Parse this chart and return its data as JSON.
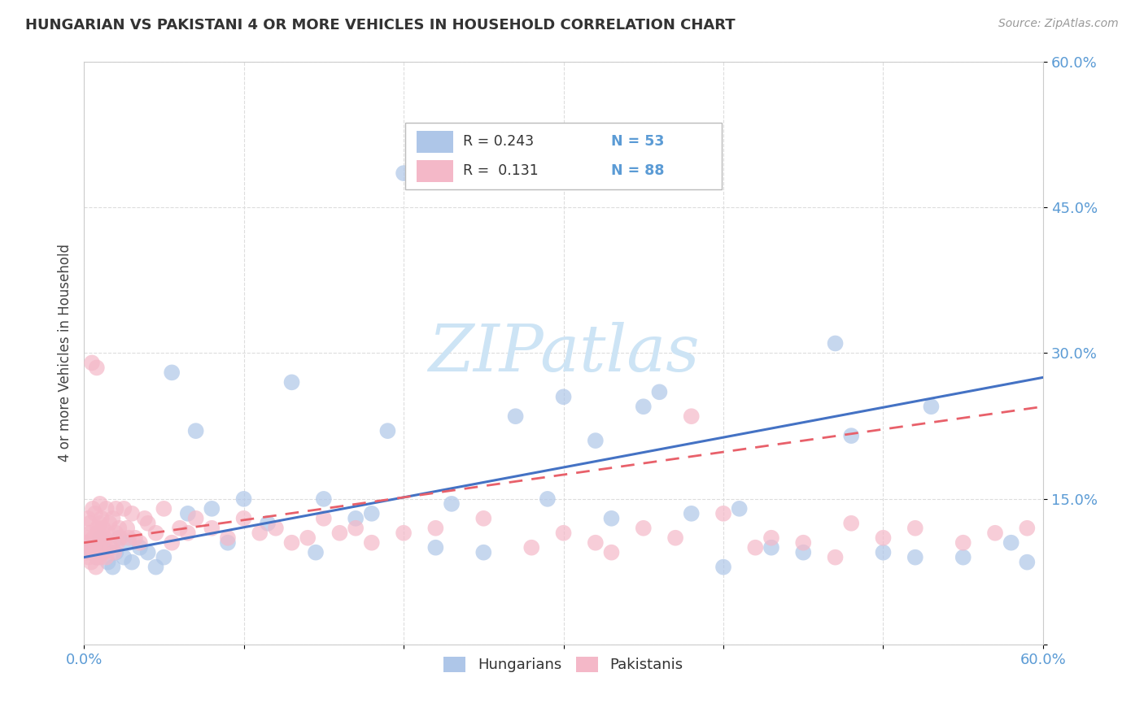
{
  "title": "HUNGARIAN VS PAKISTANI 4 OR MORE VEHICLES IN HOUSEHOLD CORRELATION CHART",
  "source": "Source: ZipAtlas.com",
  "ylabel": "4 or more Vehicles in Household",
  "hungarian_color": "#aec6e8",
  "pakistani_color": "#f4b8c8",
  "hungarian_line_color": "#4472c4",
  "pakistani_line_color": "#e8606a",
  "watermark_color": "#cde4f5",
  "hun_x": [
    0.3,
    0.5,
    0.8,
    1.0,
    1.2,
    1.5,
    1.8,
    2.0,
    2.2,
    2.5,
    2.8,
    3.0,
    3.5,
    4.0,
    4.5,
    5.0,
    5.5,
    6.5,
    7.0,
    8.0,
    9.0,
    10.0,
    11.5,
    13.0,
    14.5,
    17.0,
    19.0,
    22.0,
    23.0,
    25.0,
    27.0,
    29.0,
    32.0,
    33.0,
    35.0,
    38.0,
    40.0,
    41.0,
    43.0,
    45.0,
    47.0,
    50.0,
    52.0,
    55.0,
    58.0,
    59.0,
    15.0,
    18.0,
    20.0,
    30.0,
    36.0,
    48.0,
    53.0
  ],
  "hun_y": [
    10.0,
    9.5,
    9.0,
    11.0,
    10.0,
    8.5,
    8.0,
    9.5,
    11.0,
    9.0,
    10.5,
    8.5,
    10.0,
    9.5,
    8.0,
    9.0,
    28.0,
    13.5,
    22.0,
    14.0,
    10.5,
    15.0,
    12.5,
    27.0,
    9.5,
    13.0,
    22.0,
    10.0,
    14.5,
    9.5,
    23.5,
    15.0,
    21.0,
    13.0,
    24.5,
    13.5,
    8.0,
    14.0,
    10.0,
    9.5,
    31.0,
    9.5,
    9.0,
    9.0,
    10.5,
    8.5,
    15.0,
    13.5,
    48.5,
    25.5,
    26.0,
    21.5,
    24.5
  ],
  "pak_x": [
    0.1,
    0.15,
    0.2,
    0.25,
    0.3,
    0.35,
    0.4,
    0.45,
    0.5,
    0.5,
    0.55,
    0.6,
    0.65,
    0.7,
    0.7,
    0.75,
    0.8,
    0.8,
    0.85,
    0.9,
    0.9,
    1.0,
    1.0,
    1.0,
    1.1,
    1.1,
    1.2,
    1.2,
    1.3,
    1.3,
    1.4,
    1.4,
    1.5,
    1.6,
    1.7,
    1.8,
    1.9,
    2.0,
    2.0,
    2.1,
    2.2,
    2.3,
    2.5,
    2.7,
    2.8,
    3.0,
    3.2,
    3.5,
    3.8,
    4.0,
    4.5,
    5.0,
    5.5,
    6.0,
    6.5,
    7.0,
    8.0,
    9.0,
    10.0,
    11.0,
    12.0,
    13.0,
    14.0,
    15.0,
    16.0,
    17.0,
    18.0,
    20.0,
    22.0,
    25.0,
    28.0,
    30.0,
    32.0,
    35.0,
    37.0,
    40.0,
    43.0,
    45.0,
    48.0,
    50.0,
    52.0,
    55.0,
    57.0,
    59.0,
    33.0,
    38.0,
    42.0,
    47.0
  ],
  "pak_y": [
    10.5,
    9.5,
    11.0,
    13.0,
    9.0,
    12.5,
    11.5,
    8.5,
    10.0,
    29.0,
    14.0,
    11.0,
    9.5,
    10.5,
    13.5,
    8.0,
    9.0,
    28.5,
    12.0,
    11.5,
    10.0,
    12.5,
    14.5,
    9.0,
    11.0,
    13.0,
    9.5,
    12.0,
    11.0,
    10.5,
    14.0,
    9.0,
    11.5,
    12.5,
    10.0,
    13.0,
    9.5,
    11.5,
    14.0,
    10.5,
    12.0,
    11.0,
    14.0,
    12.0,
    11.0,
    13.5,
    11.0,
    10.5,
    13.0,
    12.5,
    11.5,
    14.0,
    10.5,
    12.0,
    11.5,
    13.0,
    12.0,
    11.0,
    13.0,
    11.5,
    12.0,
    10.5,
    11.0,
    13.0,
    11.5,
    12.0,
    10.5,
    11.5,
    12.0,
    13.0,
    10.0,
    11.5,
    10.5,
    12.0,
    11.0,
    13.5,
    11.0,
    10.5,
    12.5,
    11.0,
    12.0,
    10.5,
    11.5,
    12.0,
    9.5,
    23.5,
    10.0,
    9.0
  ],
  "hun_line_x": [
    0,
    60
  ],
  "hun_line_y": [
    9.0,
    27.5
  ],
  "pak_line_x": [
    0,
    60
  ],
  "pak_line_y": [
    10.5,
    24.5
  ],
  "xlim": [
    0,
    60
  ],
  "ylim": [
    0,
    60
  ],
  "xticks": [
    0,
    10,
    20,
    30,
    40,
    50,
    60
  ],
  "xticklabels": [
    "0.0%",
    "",
    "",
    "",
    "",
    "",
    "60.0%"
  ],
  "yticks": [
    0,
    15,
    30,
    45,
    60
  ],
  "yticklabels": [
    "",
    "15.0%",
    "30.0%",
    "45.0%",
    "60.0%"
  ],
  "legend_r1": "R = 0.243",
  "legend_n1": "N = 53",
  "legend_r2": "R =  0.131",
  "legend_n2": "N = 88",
  "tick_color": "#5b9bd5",
  "grid_color": "#dddddd",
  "spine_color": "#cccccc"
}
